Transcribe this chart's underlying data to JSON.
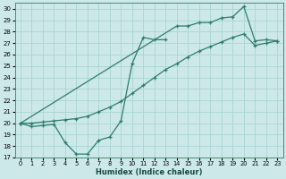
{
  "xlabel": "Humidex (Indice chaleur)",
  "bg_color": "#cce8e8",
  "grid_color": "#aad4d4",
  "line_color": "#2e7d6e",
  "xlim": [
    -0.5,
    23.5
  ],
  "ylim": [
    17,
    30.5
  ],
  "yticks": [
    17,
    18,
    19,
    20,
    21,
    22,
    23,
    24,
    25,
    26,
    27,
    28,
    29,
    30
  ],
  "xticks": [
    0,
    1,
    2,
    3,
    4,
    5,
    6,
    7,
    8,
    9,
    10,
    11,
    12,
    13,
    14,
    15,
    16,
    17,
    18,
    19,
    20,
    21,
    22,
    23
  ],
  "series1_x": [
    0,
    1,
    2,
    3,
    4,
    5,
    6,
    7,
    8,
    9,
    10,
    11,
    12,
    13,
    14,
    15,
    16,
    17,
    18,
    19,
    20,
    21,
    22,
    23
  ],
  "series1_y": [
    20.0,
    19.7,
    19.8,
    19.9,
    18.3,
    17.3,
    17.3,
    18.5,
    18.8,
    20.2,
    25.2,
    27.5,
    27.3,
    27.3,
    null,
    null,
    null,
    null,
    null,
    null,
    null,
    null,
    null,
    null
  ],
  "series2_x": [
    0,
    14,
    15,
    16,
    17,
    18,
    19,
    20,
    21,
    22,
    23
  ],
  "series2_y": [
    20.0,
    28.5,
    28.5,
    28.8,
    28.8,
    29.2,
    29.3,
    30.2,
    27.2,
    27.3,
    27.2
  ],
  "series3_x": [
    0,
    1,
    2,
    3,
    4,
    5,
    6,
    7,
    8,
    9,
    10,
    11,
    12,
    13,
    14,
    15,
    16,
    17,
    18,
    19,
    20,
    21,
    22,
    23
  ],
  "series3_y": [
    20.0,
    20.0,
    20.1,
    20.2,
    20.3,
    20.4,
    20.6,
    21.0,
    21.4,
    21.9,
    22.6,
    23.3,
    24.0,
    24.7,
    25.2,
    25.8,
    26.3,
    26.7,
    27.1,
    27.5,
    27.8,
    26.8,
    27.0,
    27.2
  ]
}
